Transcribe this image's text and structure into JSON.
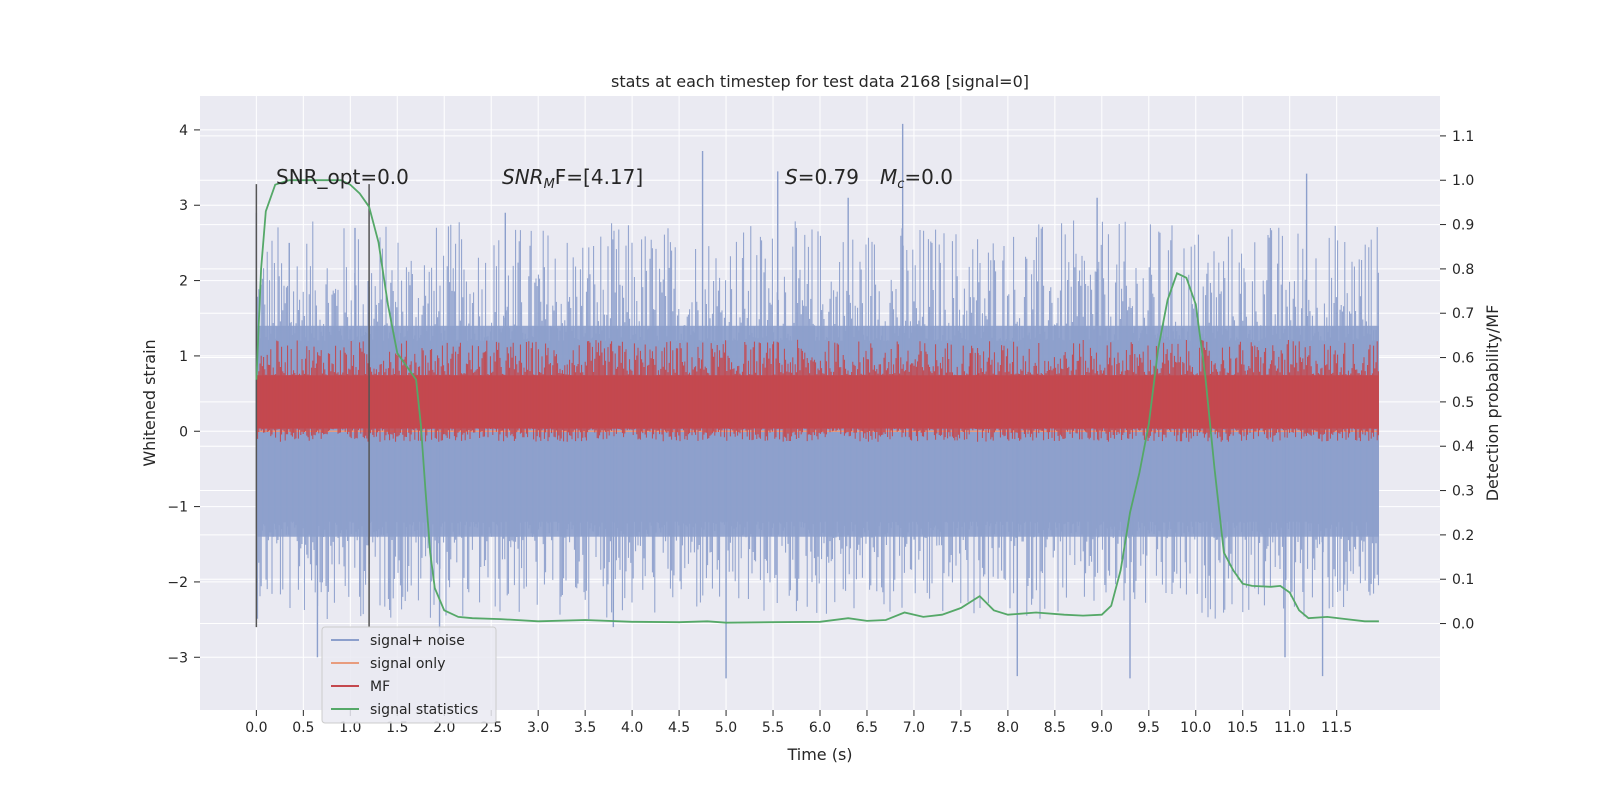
{
  "chart_data": {
    "type": "line",
    "title": "stats at each timestep for test data 2168 [signal=0]",
    "xlabel": "Time (s)",
    "ylabel_left": "Whitened strain",
    "ylabel_right": "Detection probability/MF",
    "x_ticks": [
      "0.0",
      "0.5",
      "1.0",
      "1.5",
      "2.0",
      "2.5",
      "3.0",
      "3.5",
      "4.0",
      "4.5",
      "5.0",
      "5.5",
      "6.0",
      "6.5",
      "7.0",
      "7.5",
      "8.0",
      "8.5",
      "9.0",
      "9.5",
      "10.0",
      "10.5",
      "11.0",
      "11.5"
    ],
    "y_left_ticks": [
      "−3",
      "−2",
      "−1",
      "0",
      "1",
      "2",
      "3",
      "4"
    ],
    "y_right_ticks": [
      "0.0",
      "0.1",
      "0.2",
      "0.3",
      "0.4",
      "0.5",
      "0.6",
      "0.7",
      "0.8",
      "0.9",
      "1.0",
      "1.1"
    ],
    "xlim": [
      -0.6,
      12.6
    ],
    "ylim_left": [
      -3.7,
      4.45
    ],
    "ylim_right": [
      -0.195,
      1.19
    ],
    "grid": true,
    "legend_position": "lower-left",
    "annotations": {
      "snr_opt": "SNR_opt=0.0",
      "snr_mf_sym": "SNR",
      "snr_mf_sub": "M",
      "snr_mf_rest": "F=[4.17]",
      "s_sym": "S",
      "s_rest": "=0.79",
      "mc_sym": "M",
      "mc_sub": "c",
      "mc_rest": "=0.0"
    },
    "vertical_markers_x": [
      0.0,
      1.2
    ],
    "series": [
      {
        "name": "signal+ noise",
        "color": "#8c9fcc",
        "axis": "left",
        "style": "dense-noise",
        "x_range": [
          0.0,
          11.95
        ],
        "core_range": [
          -1.4,
          1.4
        ],
        "spikes": [
          {
            "x": 0.0,
            "y": 2.9
          },
          {
            "x": 0.35,
            "y": 2.5
          },
          {
            "x": 0.65,
            "y": -3.0
          },
          {
            "x": 1.05,
            "y": 2.7
          },
          {
            "x": 1.95,
            "y": -2.7
          },
          {
            "x": 2.65,
            "y": 2.9
          },
          {
            "x": 3.8,
            "y": -2.6
          },
          {
            "x": 4.75,
            "y": 3.72
          },
          {
            "x": 5.0,
            "y": -3.28
          },
          {
            "x": 5.55,
            "y": 3.45
          },
          {
            "x": 6.3,
            "y": 3.1
          },
          {
            "x": 6.88,
            "y": 4.08
          },
          {
            "x": 8.1,
            "y": -3.25
          },
          {
            "x": 8.95,
            "y": 3.1
          },
          {
            "x": 9.3,
            "y": -3.28
          },
          {
            "x": 10.95,
            "y": -3.0
          },
          {
            "x": 11.18,
            "y": 3.42
          },
          {
            "x": 11.35,
            "y": -3.25
          }
        ]
      },
      {
        "name": "signal only",
        "color": "#e89c7e",
        "axis": "left",
        "style": "flat",
        "x_range": [
          0.0,
          11.95
        ],
        "value": 0.0
      },
      {
        "name": "MF",
        "color": "#c4484e",
        "axis": "right",
        "style": "dense-noise",
        "x_range": [
          0.0,
          11.95
        ],
        "core_range": [
          0.44,
          0.56
        ],
        "envelope": [
          0.41,
          0.64
        ],
        "spikes": [
          {
            "x": 5.5,
            "y": 0.63
          },
          {
            "x": 7.6,
            "y": 0.61
          },
          {
            "x": 7.68,
            "y": 0.61
          }
        ]
      },
      {
        "name": "signal statistics",
        "color": "#55a868",
        "axis": "right",
        "style": "line",
        "points": [
          [
            0.0,
            0.55
          ],
          [
            0.05,
            0.8
          ],
          [
            0.1,
            0.93
          ],
          [
            0.2,
            0.99
          ],
          [
            0.35,
            1.0
          ],
          [
            0.5,
            1.0
          ],
          [
            0.75,
            1.0
          ],
          [
            0.9,
            1.0
          ],
          [
            1.0,
            0.99
          ],
          [
            1.1,
            0.97
          ],
          [
            1.2,
            0.94
          ],
          [
            1.3,
            0.86
          ],
          [
            1.4,
            0.72
          ],
          [
            1.5,
            0.61
          ],
          [
            1.6,
            0.58
          ],
          [
            1.7,
            0.55
          ],
          [
            1.75,
            0.45
          ],
          [
            1.8,
            0.3
          ],
          [
            1.85,
            0.16
          ],
          [
            1.9,
            0.08
          ],
          [
            2.0,
            0.03
          ],
          [
            2.15,
            0.015
          ],
          [
            2.3,
            0.012
          ],
          [
            2.6,
            0.01
          ],
          [
            3.0,
            0.005
          ],
          [
            3.5,
            0.008
          ],
          [
            4.0,
            0.004
          ],
          [
            4.5,
            0.003
          ],
          [
            4.8,
            0.005
          ],
          [
            5.0,
            0.002
          ],
          [
            5.5,
            0.003
          ],
          [
            6.0,
            0.004
          ],
          [
            6.3,
            0.012
          ],
          [
            6.5,
            0.006
          ],
          [
            6.7,
            0.008
          ],
          [
            6.9,
            0.025
          ],
          [
            7.1,
            0.015
          ],
          [
            7.3,
            0.02
          ],
          [
            7.5,
            0.035
          ],
          [
            7.7,
            0.062
          ],
          [
            7.85,
            0.03
          ],
          [
            8.0,
            0.02
          ],
          [
            8.3,
            0.025
          ],
          [
            8.6,
            0.02
          ],
          [
            8.8,
            0.018
          ],
          [
            9.0,
            0.02
          ],
          [
            9.1,
            0.04
          ],
          [
            9.2,
            0.12
          ],
          [
            9.3,
            0.25
          ],
          [
            9.4,
            0.34
          ],
          [
            9.5,
            0.45
          ],
          [
            9.6,
            0.62
          ],
          [
            9.7,
            0.73
          ],
          [
            9.8,
            0.79
          ],
          [
            9.9,
            0.78
          ],
          [
            10.0,
            0.72
          ],
          [
            10.1,
            0.56
          ],
          [
            10.2,
            0.35
          ],
          [
            10.3,
            0.16
          ],
          [
            10.4,
            0.12
          ],
          [
            10.5,
            0.09
          ],
          [
            10.6,
            0.085
          ],
          [
            10.8,
            0.083
          ],
          [
            10.9,
            0.085
          ],
          [
            11.0,
            0.07
          ],
          [
            11.1,
            0.03
          ],
          [
            11.2,
            0.012
          ],
          [
            11.4,
            0.015
          ],
          [
            11.6,
            0.01
          ],
          [
            11.8,
            0.005
          ],
          [
            11.95,
            0.005
          ]
        ]
      }
    ]
  }
}
